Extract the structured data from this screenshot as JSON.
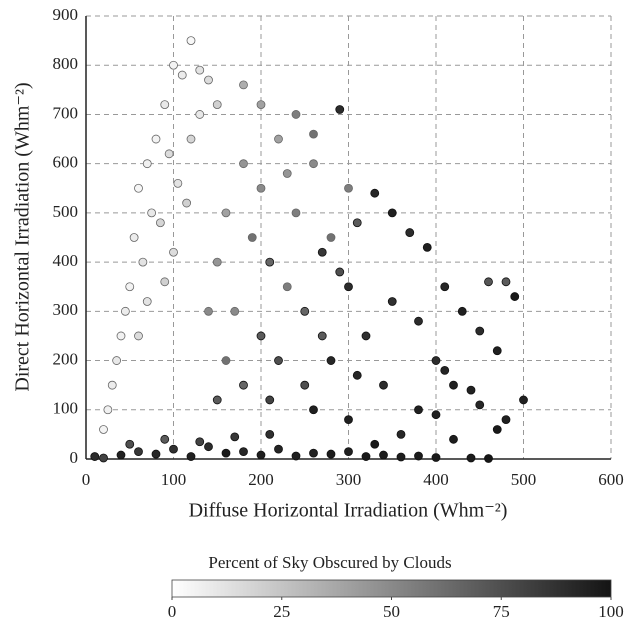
{
  "chart_data": {
    "type": "scatter",
    "xlabel": "Diffuse Horizontal Irradiation (Whm⁻²)",
    "ylabel": "Direct Horizontal Irradiation (Whm⁻²)",
    "xlim": [
      0,
      600
    ],
    "xticks": [
      0,
      100,
      200,
      300,
      400,
      500,
      600
    ],
    "ylim": [
      0,
      900
    ],
    "yticks": [
      0,
      100,
      200,
      300,
      400,
      500,
      600,
      700,
      800,
      900
    ],
    "grid": true,
    "colorbar": {
      "label": "Percent of Sky Obscured by Clouds",
      "clim": [
        0,
        100
      ],
      "ticks": [
        0,
        25,
        50,
        75,
        100
      ],
      "colors": [
        "#ffffff",
        "#141414"
      ]
    },
    "x": [
      100,
      120,
      110,
      90,
      80,
      70,
      60,
      75,
      55,
      65,
      50,
      45,
      40,
      35,
      30,
      25,
      20,
      95,
      105,
      130,
      140,
      85,
      115,
      100,
      70,
      90,
      60,
      130,
      150,
      120,
      180,
      200,
      220,
      240,
      260,
      190,
      210,
      230,
      170,
      200,
      250,
      280,
      300,
      160,
      150,
      140,
      160,
      180,
      220,
      270,
      290,
      310,
      240,
      260,
      230,
      200,
      180,
      210,
      250,
      150,
      290,
      330,
      350,
      370,
      390,
      410,
      430,
      450,
      470,
      480,
      460,
      490,
      500,
      480,
      470,
      450,
      420,
      400,
      380,
      360,
      340,
      320,
      300,
      280,
      260,
      300,
      330,
      350,
      310,
      270,
      420,
      440,
      400,
      380,
      410,
      10,
      40,
      80,
      120,
      160,
      200,
      240,
      280,
      320,
      360,
      400,
      440,
      460,
      60,
      100,
      140,
      180,
      220,
      260,
      300,
      340,
      380,
      20,
      50,
      90,
      130,
      170,
      210
    ],
    "y": [
      800,
      850,
      780,
      720,
      650,
      600,
      550,
      500,
      450,
      400,
      350,
      300,
      250,
      200,
      150,
      100,
      60,
      620,
      560,
      700,
      770,
      480,
      520,
      420,
      320,
      360,
      250,
      790,
      720,
      650,
      600,
      550,
      650,
      500,
      600,
      450,
      400,
      350,
      300,
      250,
      300,
      450,
      550,
      500,
      400,
      300,
      200,
      150,
      200,
      250,
      380,
      480,
      700,
      660,
      580,
      720,
      760,
      120,
      150,
      120,
      710,
      540,
      500,
      460,
      430,
      350,
      300,
      260,
      220,
      360,
      360,
      330,
      120,
      80,
      60,
      110,
      150,
      200,
      100,
      50,
      150,
      250,
      350,
      200,
      100,
      80,
      30,
      320,
      170,
      420,
      40,
      140,
      90,
      280,
      180,
      5,
      8,
      10,
      5,
      12,
      8,
      6,
      10,
      5,
      4,
      3,
      2,
      1,
      15,
      20,
      25,
      15,
      20,
      12,
      15,
      8,
      6,
      2,
      30,
      40,
      35,
      45,
      50
    ],
    "c": [
      5,
      3,
      8,
      10,
      5,
      6,
      4,
      10,
      8,
      12,
      5,
      8,
      6,
      10,
      8,
      6,
      5,
      15,
      12,
      10,
      15,
      18,
      20,
      15,
      12,
      20,
      15,
      12,
      20,
      18,
      45,
      50,
      40,
      55,
      50,
      60,
      65,
      55,
      50,
      70,
      65,
      60,
      55,
      40,
      45,
      50,
      60,
      65,
      75,
      70,
      75,
      70,
      55,
      60,
      45,
      40,
      35,
      80,
      75,
      70,
      90,
      92,
      95,
      90,
      95,
      92,
      95,
      90,
      95,
      70,
      72,
      98,
      95,
      95,
      98,
      92,
      95,
      90,
      95,
      92,
      90,
      88,
      90,
      92,
      95,
      95,
      98,
      88,
      92,
      85,
      96,
      94,
      95,
      90,
      93,
      90,
      95,
      92,
      95,
      98,
      96,
      95,
      97,
      98,
      96,
      98,
      97,
      99,
      85,
      88,
      90,
      92,
      93,
      94,
      95,
      96,
      97,
      80,
      75,
      70,
      80,
      85,
      88
    ]
  }
}
